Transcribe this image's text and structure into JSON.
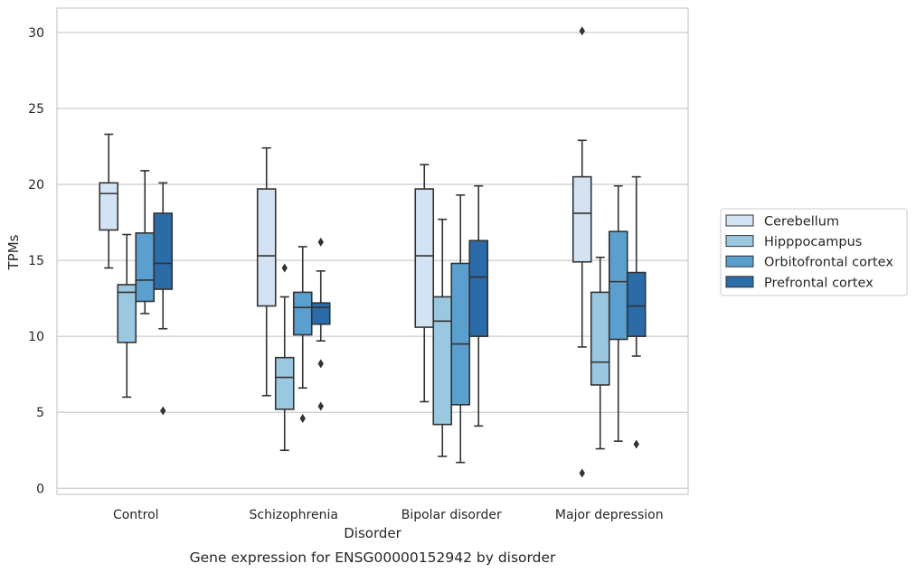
{
  "chart_data": {
    "type": "box",
    "xlabel": "Disorder",
    "ylabel": "TPMs",
    "caption": "Gene expression for ENSG00000152942 by disorder",
    "ylim": [
      -0.4,
      31.6
    ],
    "yticks": [
      0,
      5,
      10,
      15,
      20,
      25,
      30
    ],
    "grid": true,
    "legend_position": "right",
    "categories": [
      "Control",
      "Schizophrenia",
      "Bipolar disorder",
      "Major depression"
    ],
    "series": [
      {
        "name": "Cerebellum",
        "color": "#d3e3f3",
        "boxes": [
          {
            "whislo": 14.5,
            "q1": 17.0,
            "med": 19.4,
            "q3": 20.1,
            "whishi": 23.3,
            "fliers": []
          },
          {
            "whislo": 6.1,
            "q1": 12.0,
            "med": 15.3,
            "q3": 19.7,
            "whishi": 22.4,
            "fliers": []
          },
          {
            "whislo": 5.7,
            "q1": 10.6,
            "med": 15.3,
            "q3": 19.7,
            "whishi": 21.3,
            "fliers": []
          },
          {
            "whislo": 9.3,
            "q1": 14.9,
            "med": 18.1,
            "q3": 20.5,
            "whishi": 22.9,
            "fliers": [
              30.1,
              1.0
            ]
          }
        ]
      },
      {
        "name": "Hipppocampus",
        "color": "#9ac8e0",
        "boxes": [
          {
            "whislo": 6.0,
            "q1": 9.6,
            "med": 12.9,
            "q3": 13.4,
            "whishi": 16.7,
            "fliers": []
          },
          {
            "whislo": 2.5,
            "q1": 5.2,
            "med": 7.3,
            "q3": 8.6,
            "whishi": 12.6,
            "fliers": [
              14.5
            ]
          },
          {
            "whislo": 2.1,
            "q1": 4.2,
            "med": 11.0,
            "q3": 12.6,
            "whishi": 17.7,
            "fliers": []
          },
          {
            "whislo": 2.6,
            "q1": 6.8,
            "med": 8.3,
            "q3": 12.9,
            "whishi": 15.2,
            "fliers": []
          }
        ]
      },
      {
        "name": "Orbitofrontal cortex",
        "color": "#5a9fcd",
        "boxes": [
          {
            "whislo": 11.5,
            "q1": 12.3,
            "med": 13.7,
            "q3": 16.8,
            "whishi": 20.9,
            "fliers": []
          },
          {
            "whislo": 6.6,
            "q1": 10.1,
            "med": 11.9,
            "q3": 12.9,
            "whishi": 15.9,
            "fliers": [
              4.6
            ]
          },
          {
            "whislo": 1.7,
            "q1": 5.5,
            "med": 9.5,
            "q3": 14.8,
            "whishi": 19.3,
            "fliers": []
          },
          {
            "whislo": 3.1,
            "q1": 9.8,
            "med": 13.6,
            "q3": 16.9,
            "whishi": 19.9,
            "fliers": []
          }
        ]
      },
      {
        "name": "Prefrontal cortex",
        "color": "#2b6ba8",
        "boxes": [
          {
            "whislo": 10.5,
            "q1": 13.1,
            "med": 14.8,
            "q3": 18.1,
            "whishi": 20.1,
            "fliers": [
              5.1
            ]
          },
          {
            "whislo": 9.7,
            "q1": 10.8,
            "med": 11.9,
            "q3": 12.2,
            "whishi": 14.3,
            "fliers": [
              16.2,
              8.2,
              5.4
            ]
          },
          {
            "whislo": 4.1,
            "q1": 10.0,
            "med": 13.9,
            "q3": 16.3,
            "whishi": 19.9,
            "fliers": []
          },
          {
            "whislo": 8.7,
            "q1": 10.0,
            "med": 12.0,
            "q3": 14.2,
            "whishi": 20.5,
            "fliers": [
              2.9
            ]
          }
        ]
      }
    ]
  }
}
